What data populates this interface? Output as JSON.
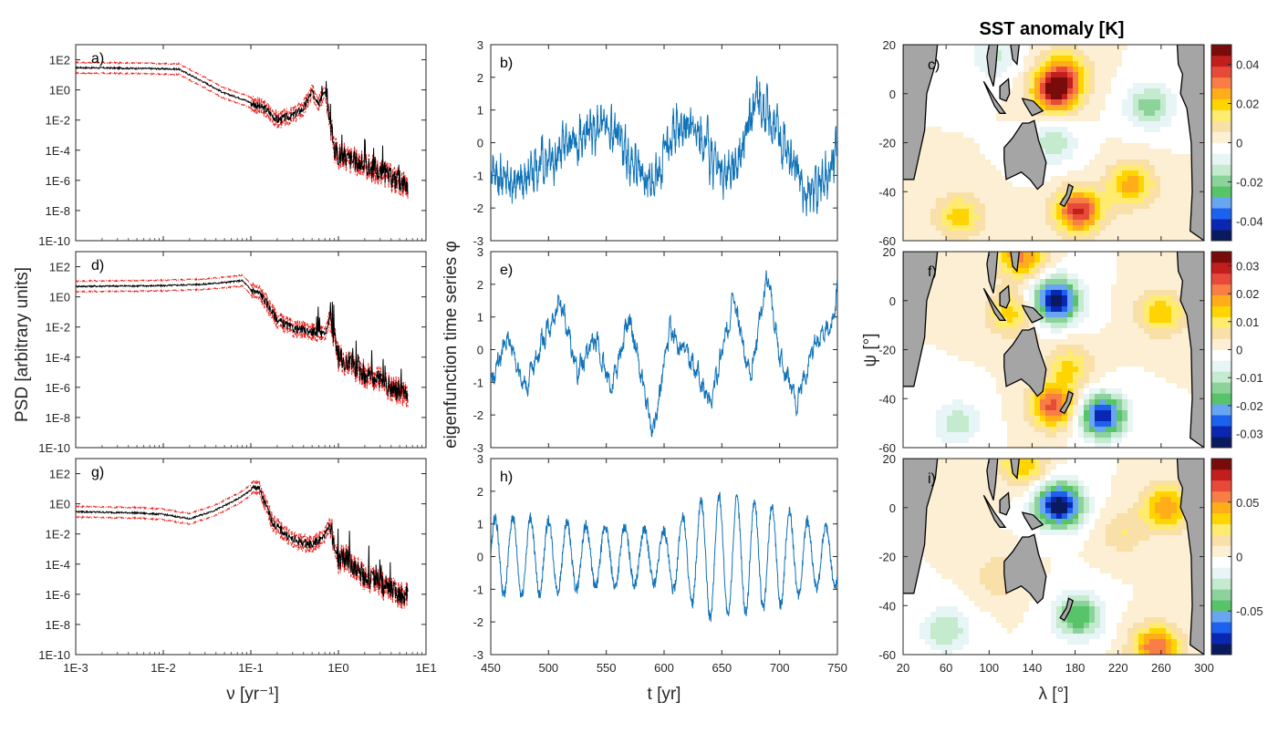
{
  "title": "SST anomaly [K]",
  "colors": {
    "psd_line": "#000000",
    "psd_band": "#e8211d",
    "timeseries": "#0f72b8",
    "land": "#a5a5a5",
    "axis": "#262626"
  },
  "chart_data": [
    {
      "type": "line",
      "panel": "a)",
      "xscale": "log",
      "yscale": "log",
      "xlim": [
        0.001,
        10
      ],
      "ylim": [
        1e-10,
        1000
      ],
      "xticks": [
        "1E-3",
        "1E-2",
        "1E-1",
        "1E0",
        "1E1"
      ],
      "yticks": [
        "1E-10",
        "1E-8",
        "1E-6",
        "1E-4",
        "1E-2",
        "1E0",
        "1E2"
      ],
      "xlabel": "",
      "ylabel": "",
      "series": [
        {
          "x": [
            0.001,
            0.003,
            0.01,
            0.015,
            0.03,
            0.05,
            0.08,
            0.15,
            0.2,
            0.3,
            0.4,
            0.5,
            0.6,
            0.7,
            0.8,
            0.9,
            1.0,
            2.0,
            4.0,
            6.0
          ],
          "y": [
            30,
            28,
            25,
            24,
            3,
            0.6,
            0.25,
            0.05,
            0.01,
            0.02,
            0.06,
            0.8,
            0.15,
            0.6,
            0.008,
            0.0001,
            5e-05,
            1e-05,
            1.5e-06,
            5e-07
          ]
        }
      ],
      "has_confidence_band": true
    },
    {
      "type": "line",
      "panel": "d)",
      "xscale": "log",
      "yscale": "log",
      "xlim": [
        0.001,
        10
      ],
      "ylim": [
        1e-10,
        1000
      ],
      "xticks": [
        "1E-3",
        "1E-2",
        "1E-1",
        "1E0",
        "1E1"
      ],
      "yticks": [
        "1E-10",
        "1E-8",
        "1E-6",
        "1E-4",
        "1E-2",
        "1E0",
        "1E2"
      ],
      "xlabel": "",
      "ylabel": "PSD [arbitrary units]",
      "series": [
        {
          "x": [
            0.001,
            0.01,
            0.03,
            0.06,
            0.08,
            0.1,
            0.13,
            0.2,
            0.3,
            0.5,
            0.7,
            0.8,
            1.0,
            1.3,
            2.0,
            4.0,
            6.0
          ],
          "y": [
            5,
            5.5,
            7,
            10,
            12,
            3,
            1.5,
            0.03,
            0.008,
            0.005,
            0.003,
            0.06,
            8e-05,
            3e-05,
            8e-06,
            1e-06,
            3e-07
          ]
        }
      ],
      "has_confidence_band": true
    },
    {
      "type": "line",
      "panel": "g)",
      "xscale": "log",
      "yscale": "log",
      "xlim": [
        0.001,
        10
      ],
      "ylim": [
        1e-10,
        1000
      ],
      "xticks": [
        "1E-3",
        "1E-2",
        "1E-1",
        "1E0",
        "1E1"
      ],
      "yticks": [
        "1E-10",
        "1E-8",
        "1E-6",
        "1E-4",
        "1E-2",
        "1E0",
        "1E2"
      ],
      "xlabel": "ν [yr⁻¹]",
      "ylabel": "",
      "series": [
        {
          "x": [
            0.001,
            0.005,
            0.01,
            0.02,
            0.04,
            0.07,
            0.1,
            0.12,
            0.18,
            0.3,
            0.5,
            0.7,
            0.8,
            1.0,
            1.2,
            2.0,
            4.0,
            6.0
          ],
          "y": [
            0.3,
            0.25,
            0.2,
            0.1,
            0.4,
            2,
            8,
            15,
            0.05,
            0.004,
            0.002,
            0.008,
            0.06,
            0.00015,
            0.0003,
            1.5e-05,
            2e-06,
            7e-07
          ]
        }
      ],
      "has_confidence_band": true
    },
    {
      "type": "line",
      "panel": "b)",
      "xlim": [
        450,
        750
      ],
      "ylim": [
        -3,
        3
      ],
      "xticks": [
        "450",
        "500",
        "550",
        "600",
        "650",
        "700",
        "750"
      ],
      "yticks": [
        "-3",
        "-2",
        "-1",
        "0",
        "1",
        "2",
        "3"
      ],
      "xlabel": "",
      "ylabel": "",
      "series": [
        {
          "x": [
            450,
            470,
            490,
            510,
            530,
            550,
            570,
            590,
            610,
            630,
            650,
            665,
            680,
            700,
            720,
            735,
            750
          ],
          "y": [
            -0.8,
            -1.3,
            -0.7,
            -0.3,
            0.3,
            0.6,
            -0.5,
            -1.2,
            0.5,
            0.3,
            -1.0,
            -0.4,
            1.3,
            0.2,
            -1.3,
            -1.5,
            -0.3
          ]
        }
      ]
    },
    {
      "type": "line",
      "panel": "e)",
      "xlim": [
        450,
        750
      ],
      "ylim": [
        -3,
        3
      ],
      "xticks": [
        "450",
        "500",
        "550",
        "600",
        "650",
        "700",
        "750"
      ],
      "yticks": [
        "-3",
        "-2",
        "-1",
        "0",
        "1",
        "2",
        "3"
      ],
      "xlabel": "",
      "ylabel": "eigenfunction time series φ",
      "series": [
        {
          "x": [
            450,
            465,
            480,
            495,
            510,
            525,
            540,
            555,
            570,
            590,
            605,
            620,
            640,
            660,
            675,
            690,
            700,
            715,
            730,
            745,
            750
          ],
          "y": [
            -1.0,
            0.4,
            -1.2,
            0.3,
            1.5,
            -0.7,
            0.3,
            -1.2,
            1.0,
            -2.6,
            0.6,
            -0.2,
            -1.6,
            1.5,
            -0.8,
            2.4,
            -0.3,
            -1.7,
            0.2,
            0.8,
            1.8
          ]
        }
      ]
    },
    {
      "type": "line",
      "panel": "h)",
      "xlim": [
        450,
        750
      ],
      "ylim": [
        -3,
        3
      ],
      "xticks": [
        "450",
        "500",
        "550",
        "600",
        "650",
        "700",
        "750"
      ],
      "yticks": [
        "-3",
        "-2",
        "-1",
        "0",
        "1",
        "2",
        "3"
      ],
      "xlabel": "t [yr]",
      "ylabel": "",
      "series": [
        {
          "period": 16,
          "amplitude": [
            1.2,
            1.2,
            1.0,
            0.9,
            0.8,
            1.9,
            1.8,
            1.5,
            1.0,
            0.9
          ],
          "x_knots": [
            450,
            480,
            520,
            560,
            600,
            640,
            660,
            700,
            730,
            750
          ]
        }
      ]
    },
    {
      "type": "heatmap",
      "panel": "c)",
      "xlim": [
        20,
        300
      ],
      "ylim": [
        -60,
        20
      ],
      "xticks": [
        "20",
        "60",
        "100",
        "140",
        "180",
        "220",
        "260",
        "300"
      ],
      "yticks": [
        "-60",
        "-40",
        "-20",
        "0",
        "20"
      ],
      "colorbar_ticks": [
        "0.04",
        "0.02",
        "0",
        "-0.02",
        "-0.04"
      ],
      "colorbar_range": [
        -0.05,
        0.05
      ],
      "anomalies": [
        {
          "lon": 162,
          "lat": 1,
          "value": 0.045
        },
        {
          "lon": 170,
          "lat": 10,
          "value": 0.02
        },
        {
          "lon": 232,
          "lat": -37,
          "value": 0.025
        },
        {
          "lon": 183,
          "lat": -48,
          "value": 0.04
        },
        {
          "lon": 72,
          "lat": -50,
          "value": 0.02
        },
        {
          "lon": 250,
          "lat": -5,
          "value": -0.02
        },
        {
          "lon": 160,
          "lat": -20,
          "value": -0.015
        },
        {
          "lon": 105,
          "lat": 15,
          "value": -0.012
        }
      ]
    },
    {
      "type": "heatmap",
      "panel": "f)",
      "xlim": [
        20,
        300
      ],
      "ylim": [
        -60,
        20
      ],
      "xticks": [
        "20",
        "60",
        "100",
        "140",
        "180",
        "220",
        "260",
        "300"
      ],
      "yticks": [
        "-60",
        "-40",
        "-20",
        "0",
        "20"
      ],
      "xlabel": "",
      "ylabel": "ψ [°]",
      "colorbar_ticks": [
        "0.03",
        "0.02",
        "0.01",
        "0",
        "-0.01",
        "-0.02",
        "-0.03"
      ],
      "colorbar_range": [
        -0.035,
        0.035
      ],
      "anomalies": [
        {
          "lon": 162,
          "lat": 0,
          "value": -0.034
        },
        {
          "lon": 205,
          "lat": -47,
          "value": -0.03
        },
        {
          "lon": 260,
          "lat": -5,
          "value": 0.015
        },
        {
          "lon": 120,
          "lat": -5,
          "value": 0.014
        },
        {
          "lon": 175,
          "lat": -27,
          "value": 0.012
        },
        {
          "lon": 130,
          "lat": 18,
          "value": 0.02
        },
        {
          "lon": 160,
          "lat": -43,
          "value": 0.025
        },
        {
          "lon": 70,
          "lat": -50,
          "value": -0.01
        }
      ]
    },
    {
      "type": "heatmap",
      "panel": "i)",
      "xlim": [
        20,
        300
      ],
      "ylim": [
        -60,
        20
      ],
      "xticks": [
        "20",
        "60",
        "100",
        "140",
        "180",
        "220",
        "260",
        "300"
      ],
      "yticks": [
        "-60",
        "-40",
        "-20",
        "0",
        "20"
      ],
      "xlabel": "λ [°]",
      "ylabel": "",
      "colorbar_ticks": [
        "0.05",
        "0",
        "-0.05"
      ],
      "colorbar_range": [
        -0.09,
        0.09
      ],
      "anomalies": [
        {
          "lon": 165,
          "lat": 1,
          "value": -0.09
        },
        {
          "lon": 183,
          "lat": -44,
          "value": -0.05
        },
        {
          "lon": 255,
          "lat": -57,
          "value": 0.06
        },
        {
          "lon": 265,
          "lat": 0,
          "value": 0.05
        },
        {
          "lon": 132,
          "lat": 18,
          "value": 0.04
        },
        {
          "lon": 225,
          "lat": -10,
          "value": 0.02
        },
        {
          "lon": 110,
          "lat": -28,
          "value": 0.02
        },
        {
          "lon": 60,
          "lat": -50,
          "value": -0.03
        }
      ]
    }
  ]
}
